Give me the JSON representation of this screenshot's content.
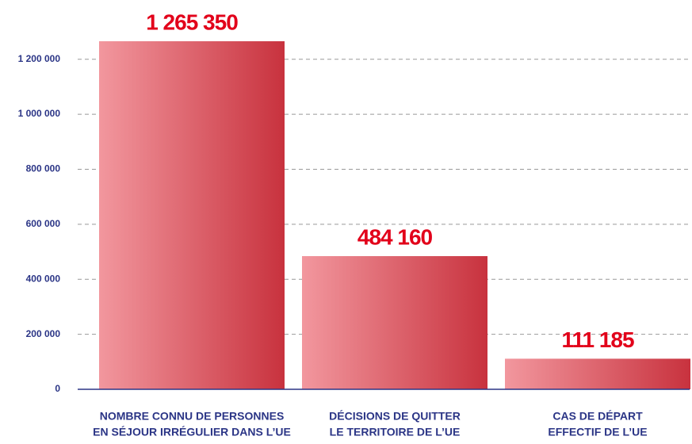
{
  "chart_data": {
    "type": "bar",
    "categories": [
      [
        "NOMBRE CONNU DE PERSONNES",
        "EN SÉJOUR IRRÉGULIER DANS L’UE"
      ],
      [
        "DÉCISIONS DE QUITTER",
        "LE TERRITOIRE DE L’UE"
      ],
      [
        "CAS DE DÉPART",
        "EFFECTIF DE L’UE"
      ]
    ],
    "values": [
      1265350,
      484160,
      111185
    ],
    "value_labels": [
      "1 265 350",
      "484 160",
      "111 185"
    ],
    "color": [
      "#f2979e",
      "#c8323e"
    ],
    "ylim": [
      0,
      1300000
    ],
    "yticks": [
      0,
      {
        "value": 200000,
        "label": "200 000"
      },
      {
        "value": 400000,
        "label": "400 000"
      },
      {
        "value": 600000,
        "label": "600 000"
      },
      {
        "value": 800000,
        "label": "800 000"
      },
      {
        "value": 1000000,
        "label": "1 000 000"
      },
      {
        "value": 1200000,
        "label": "1 200 000"
      }
    ],
    "grid": true
  }
}
